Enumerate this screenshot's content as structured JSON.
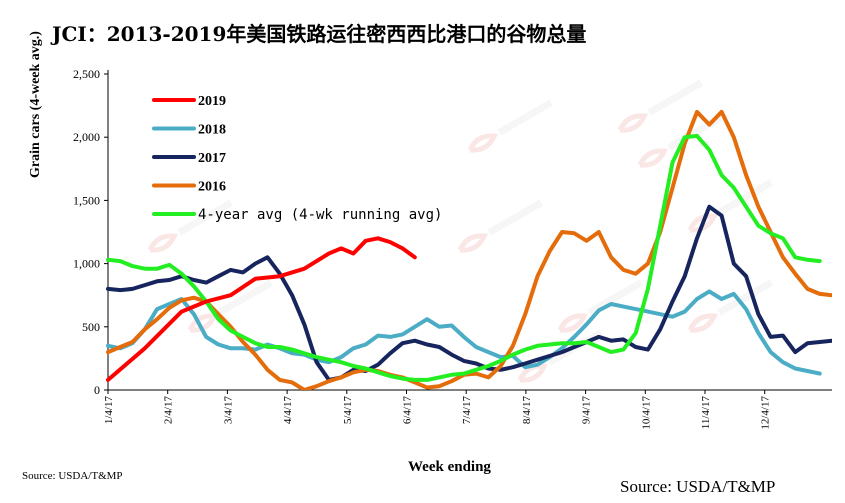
{
  "chart_data": {
    "type": "line",
    "title": "JCI：2013-2019年美国铁路运往密西西比港口的谷物总量",
    "xlabel": "Week ending",
    "ylabel": "Grain cars (4-week avg.)",
    "ylim": [
      0,
      2500
    ],
    "yticks": [
      "0",
      "500",
      "1,000",
      "1,500",
      "2,000",
      "2,500"
    ],
    "xtick_labels": [
      "1/4/17",
      "2/4/17",
      "3/4/17",
      "4/4/17",
      "5/4/17",
      "6/4/17",
      "7/4/17",
      "8/4/17",
      "9/4/17",
      "10/4/17",
      "11/4/17",
      "12/4/17"
    ],
    "legend_position": "top-left",
    "source_left": "Source: USDA/T&MP",
    "source_right": "Source: USDA/T&MP",
    "series": [
      {
        "name": "2019",
        "color": "#ff0000",
        "points": [
          [
            0,
            80
          ],
          [
            3,
            330
          ],
          [
            6,
            620
          ],
          [
            8,
            700
          ],
          [
            10,
            750
          ],
          [
            12,
            880
          ],
          [
            14,
            900
          ],
          [
            16,
            960
          ],
          [
            18,
            1080
          ],
          [
            19,
            1120
          ],
          [
            20,
            1080
          ],
          [
            21,
            1180
          ],
          [
            22,
            1200
          ],
          [
            23,
            1170
          ],
          [
            24,
            1120
          ],
          [
            25,
            1050
          ]
        ]
      },
      {
        "name": "2018",
        "color": "#4bacc6",
        "points": [
          [
            0,
            350
          ],
          [
            1,
            330
          ],
          [
            2,
            370
          ],
          [
            3,
            480
          ],
          [
            4,
            640
          ],
          [
            5,
            680
          ],
          [
            6,
            720
          ],
          [
            7,
            600
          ],
          [
            8,
            420
          ],
          [
            9,
            360
          ],
          [
            10,
            330
          ],
          [
            11,
            330
          ],
          [
            12,
            320
          ],
          [
            13,
            360
          ],
          [
            14,
            330
          ],
          [
            15,
            290
          ],
          [
            16,
            280
          ],
          [
            17,
            240
          ],
          [
            18,
            220
          ],
          [
            19,
            260
          ],
          [
            20,
            330
          ],
          [
            21,
            360
          ],
          [
            22,
            430
          ],
          [
            23,
            420
          ],
          [
            24,
            440
          ],
          [
            25,
            500
          ],
          [
            26,
            560
          ],
          [
            27,
            500
          ],
          [
            28,
            510
          ],
          [
            29,
            420
          ],
          [
            30,
            340
          ],
          [
            31,
            300
          ],
          [
            32,
            260
          ],
          [
            33,
            270
          ],
          [
            34,
            180
          ],
          [
            35,
            200
          ],
          [
            36,
            260
          ],
          [
            37,
            330
          ],
          [
            38,
            420
          ],
          [
            39,
            520
          ],
          [
            40,
            630
          ],
          [
            41,
            680
          ],
          [
            42,
            660
          ],
          [
            43,
            640
          ],
          [
            44,
            620
          ],
          [
            45,
            600
          ],
          [
            46,
            580
          ],
          [
            47,
            620
          ],
          [
            48,
            720
          ],
          [
            49,
            780
          ],
          [
            50,
            720
          ],
          [
            51,
            760
          ],
          [
            52,
            640
          ],
          [
            53,
            450
          ],
          [
            54,
            300
          ],
          [
            55,
            220
          ],
          [
            56,
            170
          ],
          [
            57,
            150
          ],
          [
            58,
            130
          ]
        ]
      },
      {
        "name": "2017",
        "color": "#17255e",
        "points": [
          [
            0,
            800
          ],
          [
            1,
            790
          ],
          [
            2,
            800
          ],
          [
            3,
            830
          ],
          [
            4,
            860
          ],
          [
            5,
            870
          ],
          [
            6,
            900
          ],
          [
            7,
            870
          ],
          [
            8,
            850
          ],
          [
            9,
            900
          ],
          [
            10,
            950
          ],
          [
            11,
            930
          ],
          [
            12,
            1000
          ],
          [
            13,
            1050
          ],
          [
            14,
            920
          ],
          [
            15,
            750
          ],
          [
            16,
            520
          ],
          [
            17,
            220
          ],
          [
            18,
            80
          ],
          [
            19,
            100
          ],
          [
            20,
            160
          ],
          [
            21,
            150
          ],
          [
            22,
            200
          ],
          [
            23,
            290
          ],
          [
            24,
            370
          ],
          [
            25,
            390
          ],
          [
            26,
            360
          ],
          [
            27,
            340
          ],
          [
            28,
            280
          ],
          [
            29,
            230
          ],
          [
            30,
            210
          ],
          [
            31,
            170
          ],
          [
            32,
            160
          ],
          [
            33,
            180
          ],
          [
            34,
            210
          ],
          [
            35,
            240
          ],
          [
            36,
            270
          ],
          [
            37,
            300
          ],
          [
            38,
            340
          ],
          [
            39,
            380
          ],
          [
            40,
            420
          ],
          [
            41,
            390
          ],
          [
            42,
            400
          ],
          [
            43,
            340
          ],
          [
            44,
            320
          ],
          [
            45,
            480
          ],
          [
            46,
            700
          ],
          [
            47,
            900
          ],
          [
            48,
            1200
          ],
          [
            49,
            1450
          ],
          [
            50,
            1380
          ],
          [
            51,
            1000
          ],
          [
            52,
            900
          ],
          [
            53,
            600
          ],
          [
            54,
            420
          ],
          [
            55,
            430
          ],
          [
            56,
            300
          ],
          [
            57,
            370
          ],
          [
            58,
            380
          ],
          [
            59,
            390
          ]
        ]
      },
      {
        "name": "2016",
        "color": "#e46c0a",
        "points": [
          [
            0,
            300
          ],
          [
            1,
            340
          ],
          [
            2,
            380
          ],
          [
            3,
            480
          ],
          [
            4,
            560
          ],
          [
            5,
            650
          ],
          [
            6,
            710
          ],
          [
            7,
            730
          ],
          [
            8,
            700
          ],
          [
            9,
            600
          ],
          [
            10,
            500
          ],
          [
            11,
            380
          ],
          [
            12,
            280
          ],
          [
            13,
            160
          ],
          [
            14,
            80
          ],
          [
            15,
            60
          ],
          [
            16,
            0
          ],
          [
            17,
            30
          ],
          [
            18,
            70
          ],
          [
            19,
            100
          ],
          [
            20,
            140
          ],
          [
            21,
            160
          ],
          [
            22,
            150
          ],
          [
            23,
            120
          ],
          [
            24,
            100
          ],
          [
            25,
            60
          ],
          [
            26,
            20
          ],
          [
            27,
            30
          ],
          [
            28,
            70
          ],
          [
            29,
            120
          ],
          [
            30,
            130
          ],
          [
            31,
            100
          ],
          [
            32,
            190
          ],
          [
            33,
            350
          ],
          [
            34,
            600
          ],
          [
            35,
            900
          ],
          [
            36,
            1100
          ],
          [
            37,
            1250
          ],
          [
            38,
            1240
          ],
          [
            39,
            1180
          ],
          [
            40,
            1250
          ],
          [
            41,
            1050
          ],
          [
            42,
            950
          ],
          [
            43,
            920
          ],
          [
            44,
            1000
          ],
          [
            45,
            1250
          ],
          [
            46,
            1600
          ],
          [
            47,
            1950
          ],
          [
            48,
            2200
          ],
          [
            49,
            2100
          ],
          [
            50,
            2200
          ],
          [
            51,
            2000
          ],
          [
            52,
            1700
          ],
          [
            53,
            1450
          ],
          [
            54,
            1250
          ],
          [
            55,
            1050
          ],
          [
            56,
            920
          ],
          [
            57,
            800
          ],
          [
            58,
            760
          ],
          [
            59,
            750
          ]
        ]
      },
      {
        "name": "4-year avg (4-wk running avg)",
        "color": "#22ee22",
        "points": [
          [
            0,
            1030
          ],
          [
            1,
            1020
          ],
          [
            2,
            980
          ],
          [
            3,
            960
          ],
          [
            4,
            960
          ],
          [
            5,
            990
          ],
          [
            6,
            920
          ],
          [
            7,
            820
          ],
          [
            8,
            700
          ],
          [
            9,
            560
          ],
          [
            10,
            470
          ],
          [
            11,
            420
          ],
          [
            12,
            370
          ],
          [
            13,
            340
          ],
          [
            14,
            340
          ],
          [
            15,
            320
          ],
          [
            16,
            290
          ],
          [
            17,
            260
          ],
          [
            18,
            240
          ],
          [
            19,
            220
          ],
          [
            20,
            190
          ],
          [
            21,
            170
          ],
          [
            22,
            140
          ],
          [
            23,
            110
          ],
          [
            24,
            90
          ],
          [
            25,
            80
          ],
          [
            26,
            80
          ],
          [
            27,
            100
          ],
          [
            28,
            120
          ],
          [
            29,
            130
          ],
          [
            30,
            160
          ],
          [
            31,
            190
          ],
          [
            32,
            230
          ],
          [
            33,
            280
          ],
          [
            34,
            320
          ],
          [
            35,
            350
          ],
          [
            36,
            360
          ],
          [
            37,
            370
          ],
          [
            38,
            370
          ],
          [
            39,
            380
          ],
          [
            40,
            340
          ],
          [
            41,
            300
          ],
          [
            42,
            320
          ],
          [
            43,
            450
          ],
          [
            44,
            800
          ],
          [
            45,
            1300
          ],
          [
            46,
            1800
          ],
          [
            47,
            2000
          ],
          [
            48,
            2010
          ],
          [
            49,
            1900
          ],
          [
            50,
            1700
          ],
          [
            51,
            1600
          ],
          [
            52,
            1450
          ],
          [
            53,
            1300
          ],
          [
            54,
            1240
          ],
          [
            55,
            1200
          ],
          [
            56,
            1050
          ],
          [
            57,
            1030
          ],
          [
            58,
            1020
          ]
        ]
      }
    ]
  }
}
